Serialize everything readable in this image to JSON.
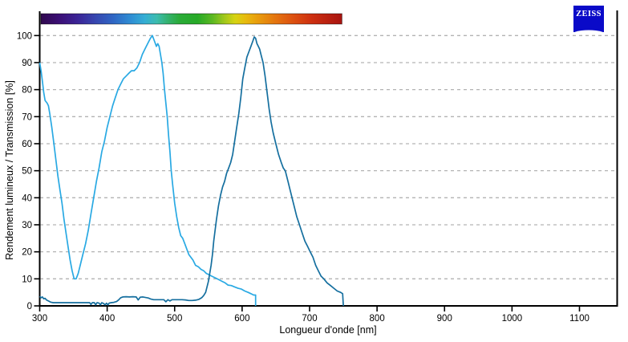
{
  "branding": {
    "logo_text": "ZEISS",
    "logo_bg": "#0a0ac8",
    "logo_fg": "#ffffff"
  },
  "chart_data": {
    "type": "line",
    "title": "",
    "xlabel": "Longueur d'onde [nm]",
    "ylabel": "Rendement lumineux / Transmission [%]",
    "xlim": [
      300,
      1155
    ],
    "ylim": [
      0,
      100
    ],
    "x_ticks": [
      300,
      400,
      500,
      600,
      700,
      800,
      900,
      1000,
      1100
    ],
    "y_ticks": [
      0,
      10,
      20,
      30,
      40,
      50,
      60,
      70,
      80,
      90,
      100
    ],
    "grid": "horizontal-dashed",
    "grid_color": "#b3b3b3",
    "axis_color": "#000000",
    "legend": "none",
    "series": [
      {
        "name": "light-blue-curve",
        "color": "#29a9e3",
        "points": [
          [
            300,
            90
          ],
          [
            302,
            87
          ],
          [
            304,
            83
          ],
          [
            306,
            79
          ],
          [
            308,
            76
          ],
          [
            311,
            75
          ],
          [
            313,
            74
          ],
          [
            315,
            71
          ],
          [
            318,
            66
          ],
          [
            321,
            60
          ],
          [
            324,
            54
          ],
          [
            327,
            48
          ],
          [
            330,
            43
          ],
          [
            333,
            38
          ],
          [
            336,
            32
          ],
          [
            339,
            27
          ],
          [
            342,
            22
          ],
          [
            345,
            17
          ],
          [
            348,
            13
          ],
          [
            351,
            10
          ],
          [
            354,
            10
          ],
          [
            357,
            12
          ],
          [
            360,
            15
          ],
          [
            364,
            19
          ],
          [
            368,
            23
          ],
          [
            372,
            28
          ],
          [
            376,
            34
          ],
          [
            380,
            40
          ],
          [
            384,
            46
          ],
          [
            388,
            51
          ],
          [
            392,
            57
          ],
          [
            396,
            61
          ],
          [
            400,
            66
          ],
          [
            404,
            70
          ],
          [
            408,
            74
          ],
          [
            412,
            77
          ],
          [
            416,
            80
          ],
          [
            420,
            82
          ],
          [
            424,
            84
          ],
          [
            428,
            85
          ],
          [
            432,
            86
          ],
          [
            436,
            87
          ],
          [
            440,
            87
          ],
          [
            444,
            88
          ],
          [
            448,
            90
          ],
          [
            452,
            93
          ],
          [
            456,
            95
          ],
          [
            460,
            97
          ],
          [
            464,
            99
          ],
          [
            467,
            100
          ],
          [
            470,
            98
          ],
          [
            473,
            96
          ],
          [
            475,
            97
          ],
          [
            477,
            96
          ],
          [
            479,
            93
          ],
          [
            481,
            90
          ],
          [
            483,
            86
          ],
          [
            485,
            80
          ],
          [
            487,
            75
          ],
          [
            489,
            70
          ],
          [
            491,
            63
          ],
          [
            493,
            57
          ],
          [
            495,
            50
          ],
          [
            497,
            45
          ],
          [
            500,
            38
          ],
          [
            503,
            33
          ],
          [
            506,
            29
          ],
          [
            509,
            26
          ],
          [
            512,
            25
          ],
          [
            515,
            23
          ],
          [
            518,
            21
          ],
          [
            521,
            19
          ],
          [
            524,
            18
          ],
          [
            527,
            17
          ],
          [
            531,
            15
          ],
          [
            535,
            14.5
          ],
          [
            539,
            13.5
          ],
          [
            543,
            13
          ],
          [
            547,
            12
          ],
          [
            551,
            11.5
          ],
          [
            555,
            11
          ],
          [
            559,
            10.5
          ],
          [
            563,
            10
          ],
          [
            567,
            9.5
          ],
          [
            571,
            9
          ],
          [
            575,
            8.5
          ],
          [
            579,
            7.7
          ],
          [
            584,
            7.5
          ],
          [
            589,
            7
          ],
          [
            594,
            6.5
          ],
          [
            599,
            6.2
          ],
          [
            604,
            5.5
          ],
          [
            609,
            5
          ],
          [
            613,
            4.5
          ],
          [
            617,
            4
          ],
          [
            620,
            4
          ],
          [
            620,
            0
          ]
        ]
      },
      {
        "name": "dark-blue-curve",
        "color": "#156f9f",
        "points": [
          [
            300,
            3.5
          ],
          [
            302,
            3
          ],
          [
            304,
            3.3
          ],
          [
            306,
            2.6
          ],
          [
            308,
            2.8
          ],
          [
            310,
            2.2
          ],
          [
            313,
            1.8
          ],
          [
            316,
            1.4
          ],
          [
            320,
            1.2
          ],
          [
            325,
            1.2
          ],
          [
            330,
            1.2
          ],
          [
            335,
            1.2
          ],
          [
            340,
            1.2
          ],
          [
            345,
            1.2
          ],
          [
            350,
            1.2
          ],
          [
            355,
            1.2
          ],
          [
            360,
            1.2
          ],
          [
            365,
            1.2
          ],
          [
            370,
            1.2
          ],
          [
            374,
            1.2
          ],
          [
            376,
            0.5
          ],
          [
            378,
            1.2
          ],
          [
            381,
            1.2
          ],
          [
            383,
            0.4
          ],
          [
            385,
            1.2
          ],
          [
            388,
            1
          ],
          [
            390,
            0.4
          ],
          [
            392,
            1.2
          ],
          [
            395,
            0.8
          ],
          [
            397,
            0.4
          ],
          [
            399,
            1
          ],
          [
            401,
            0.4
          ],
          [
            403,
            1
          ],
          [
            406,
            1.2
          ],
          [
            410,
            1.3
          ],
          [
            414,
            1.6
          ],
          [
            417,
            2.2
          ],
          [
            420,
            3
          ],
          [
            423,
            3.3
          ],
          [
            428,
            3.4
          ],
          [
            433,
            3.3
          ],
          [
            438,
            3.4
          ],
          [
            443,
            3.3
          ],
          [
            446,
            2.2
          ],
          [
            449,
            3.2
          ],
          [
            453,
            3.3
          ],
          [
            457,
            3.1
          ],
          [
            461,
            2.9
          ],
          [
            465,
            2.5
          ],
          [
            469,
            2.3
          ],
          [
            474,
            2.3
          ],
          [
            479,
            2.3
          ],
          [
            484,
            2.3
          ],
          [
            487,
            1.5
          ],
          [
            490,
            2.3
          ],
          [
            493,
            1.8
          ],
          [
            496,
            2.3
          ],
          [
            501,
            2.3
          ],
          [
            506,
            2.3
          ],
          [
            511,
            2.3
          ],
          [
            516,
            2.2
          ],
          [
            521,
            2
          ],
          [
            526,
            2
          ],
          [
            531,
            2.1
          ],
          [
            536,
            2.4
          ],
          [
            540,
            3
          ],
          [
            543,
            3.8
          ],
          [
            546,
            5
          ],
          [
            548,
            7
          ],
          [
            550,
            9
          ],
          [
            552,
            12
          ],
          [
            554,
            15
          ],
          [
            556,
            19
          ],
          [
            558,
            24
          ],
          [
            560,
            28
          ],
          [
            562,
            32
          ],
          [
            565,
            37
          ],
          [
            568,
            41
          ],
          [
            571,
            44
          ],
          [
            574,
            46
          ],
          [
            577,
            49
          ],
          [
            580,
            51
          ],
          [
            583,
            53
          ],
          [
            586,
            56
          ],
          [
            589,
            61
          ],
          [
            592,
            66
          ],
          [
            595,
            71
          ],
          [
            598,
            77
          ],
          [
            601,
            84
          ],
          [
            604,
            88
          ],
          [
            607,
            92
          ],
          [
            610,
            94
          ],
          [
            613,
            96
          ],
          [
            616,
            98
          ],
          [
            618,
            99.5
          ],
          [
            620,
            99
          ],
          [
            622,
            97
          ],
          [
            624,
            96
          ],
          [
            626,
            95
          ],
          [
            628,
            93
          ],
          [
            631,
            90
          ],
          [
            634,
            85
          ],
          [
            637,
            79
          ],
          [
            640,
            73
          ],
          [
            643,
            68
          ],
          [
            646,
            64
          ],
          [
            650,
            60
          ],
          [
            654,
            56
          ],
          [
            658,
            53
          ],
          [
            661,
            51
          ],
          [
            664,
            50
          ],
          [
            668,
            46
          ],
          [
            671,
            43
          ],
          [
            674,
            40
          ],
          [
            678,
            36
          ],
          [
            681,
            33
          ],
          [
            685,
            30
          ],
          [
            689,
            27
          ],
          [
            693,
            24
          ],
          [
            697,
            22
          ],
          [
            701,
            20
          ],
          [
            705,
            18
          ],
          [
            709,
            15
          ],
          [
            713,
            13
          ],
          [
            717,
            11
          ],
          [
            721,
            10
          ],
          [
            726,
            8.5
          ],
          [
            731,
            7.5
          ],
          [
            736,
            6.5
          ],
          [
            741,
            5.5
          ],
          [
            746,
            5
          ],
          [
            749,
            4.5
          ],
          [
            750,
            0
          ]
        ]
      }
    ],
    "spectrum_bar": {
      "range_nm": [
        300,
        748
      ],
      "stops": [
        {
          "offset": 0.0,
          "color": "#30094e"
        },
        {
          "offset": 0.06,
          "color": "#3b0f75"
        },
        {
          "offset": 0.12,
          "color": "#3b2395"
        },
        {
          "offset": 0.18,
          "color": "#3746af"
        },
        {
          "offset": 0.24,
          "color": "#2f66c4"
        },
        {
          "offset": 0.3,
          "color": "#2f8fd4"
        },
        {
          "offset": 0.345,
          "color": "#35aed4"
        },
        {
          "offset": 0.385,
          "color": "#3cbcae"
        },
        {
          "offset": 0.42,
          "color": "#34b271"
        },
        {
          "offset": 0.46,
          "color": "#2aab38"
        },
        {
          "offset": 0.52,
          "color": "#27aa27"
        },
        {
          "offset": 0.57,
          "color": "#5cb822"
        },
        {
          "offset": 0.61,
          "color": "#a1c81c"
        },
        {
          "offset": 0.645,
          "color": "#d6d312"
        },
        {
          "offset": 0.68,
          "color": "#e7bb0e"
        },
        {
          "offset": 0.72,
          "color": "#e89d0d"
        },
        {
          "offset": 0.78,
          "color": "#e4740f"
        },
        {
          "offset": 0.84,
          "color": "#dc4f10"
        },
        {
          "offset": 0.9,
          "color": "#cd2f10"
        },
        {
          "offset": 1.0,
          "color": "#a81410"
        }
      ]
    }
  }
}
